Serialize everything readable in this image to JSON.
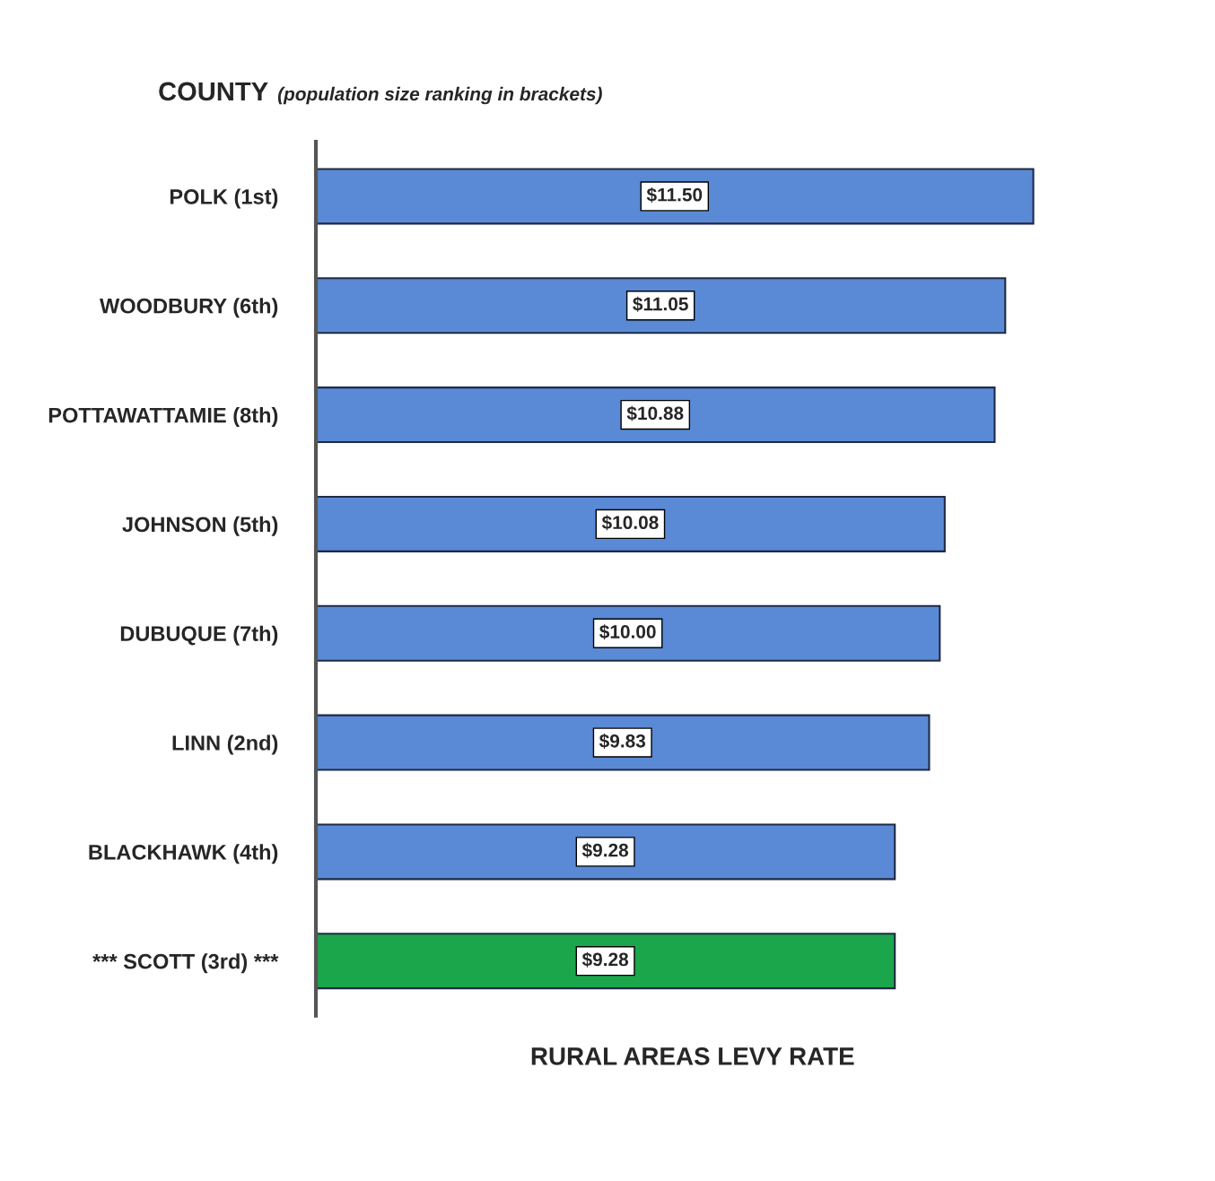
{
  "chart_data": {
    "type": "bar",
    "orientation": "horizontal",
    "title": "COUNTY",
    "subtitle": "(population size ranking in brackets)",
    "xlabel": "RURAL AREAS LEVY RATE",
    "categories": [
      "POLK (1st)",
      "WOODBURY (6th)",
      "POTTAWATTAMIE (8th)",
      "JOHNSON (5th)",
      "DUBUQUE (7th)",
      "LINN (2nd)",
      "BLACKHAWK (4th)",
      "*** SCOTT (3rd) ***"
    ],
    "values": [
      11.5,
      11.05,
      10.88,
      10.08,
      10.0,
      9.83,
      9.28,
      9.28
    ],
    "value_labels": [
      "$11.50",
      "$11.05",
      "$10.88",
      "$10.08",
      "$10.00",
      "$9.83",
      "$9.28",
      "$9.28"
    ],
    "colors": [
      "#5a8ad6",
      "#5a8ad6",
      "#5a8ad6",
      "#5a8ad6",
      "#5a8ad6",
      "#5a8ad6",
      "#5a8ad6",
      "#1ba64c"
    ],
    "tick_labels": "y",
    "legend": false,
    "grid": false
  }
}
